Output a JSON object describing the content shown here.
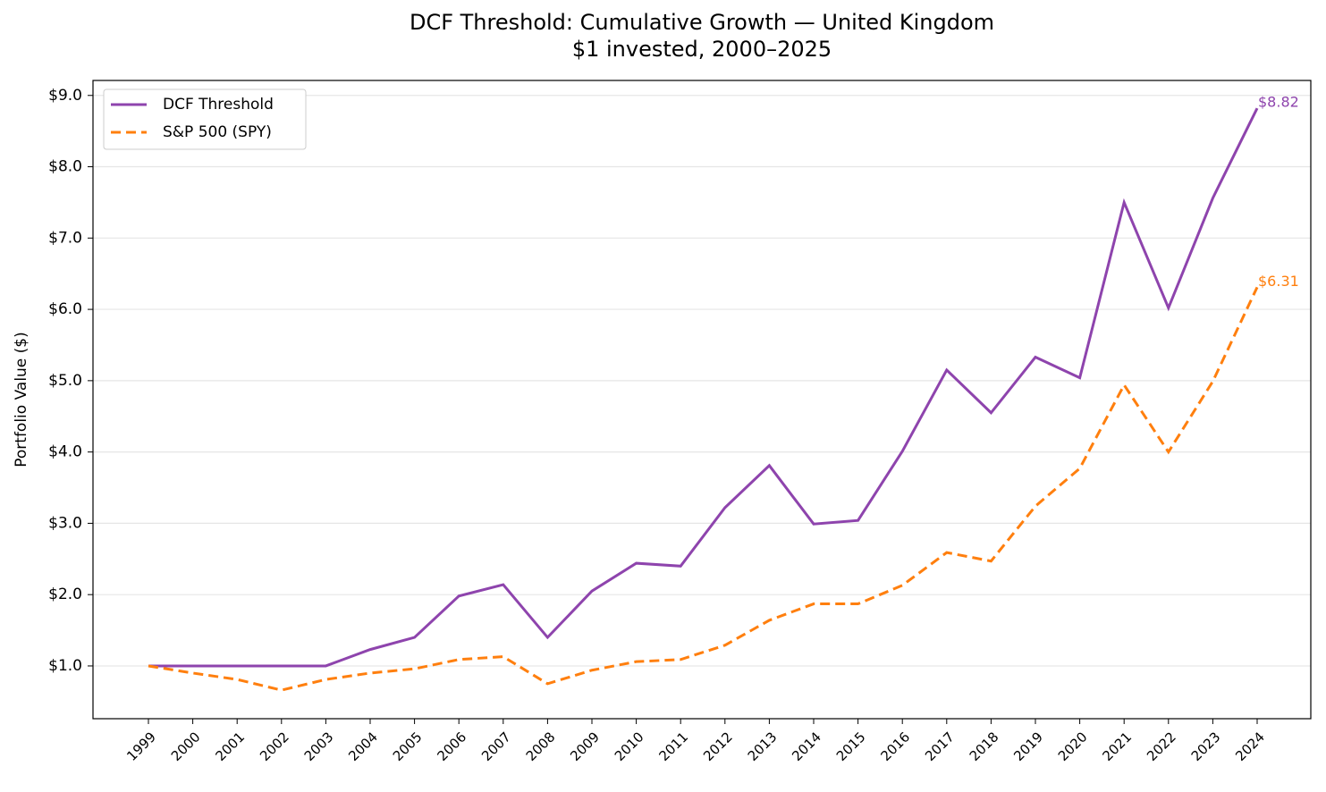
{
  "chart_data": {
    "type": "line",
    "title": "DCF Threshold: Cumulative Growth — United Kingdom",
    "subtitle": "$1 invested, 2000–2025",
    "y_label": "Portfolio Value ($)",
    "categories": [
      "1999",
      "2000",
      "2001",
      "2002",
      "2003",
      "2004",
      "2005",
      "2006",
      "2007",
      "2008",
      "2009",
      "2010",
      "2011",
      "2012",
      "2013",
      "2014",
      "2015",
      "2016",
      "2017",
      "2018",
      "2019",
      "2020",
      "2021",
      "2022",
      "2023",
      "2024"
    ],
    "series": [
      {
        "name": "DCF Threshold",
        "color": "#8e44ad",
        "dashed": false,
        "values": [
          1.0,
          1.0,
          1.0,
          1.0,
          1.0,
          1.23,
          1.4,
          1.98,
          2.14,
          1.4,
          2.05,
          2.44,
          2.4,
          3.22,
          3.81,
          2.99,
          3.04,
          4.01,
          5.15,
          4.55,
          5.33,
          5.04,
          7.5,
          6.02,
          7.56,
          8.82
        ],
        "value_labels": [
          null,
          null,
          null,
          null,
          null,
          null,
          null,
          null,
          null,
          null,
          null,
          null,
          null,
          null,
          null,
          null,
          null,
          null,
          null,
          null,
          null,
          null,
          null,
          null,
          null,
          "$8.82"
        ]
      },
      {
        "name": "S&P 500 (SPY)",
        "color": "#ff7f0e",
        "dashed": true,
        "values": [
          1.0,
          0.9,
          0.81,
          0.66,
          0.81,
          0.9,
          0.96,
          1.09,
          1.13,
          0.75,
          0.94,
          1.06,
          1.09,
          1.29,
          1.64,
          1.87,
          1.87,
          2.13,
          2.59,
          2.47,
          3.24,
          3.77,
          4.94,
          4.0,
          4.99,
          6.31
        ],
        "value_labels": [
          null,
          null,
          null,
          null,
          null,
          null,
          null,
          null,
          null,
          null,
          null,
          null,
          null,
          null,
          null,
          null,
          null,
          null,
          null,
          null,
          null,
          null,
          null,
          null,
          null,
          "$6.31"
        ]
      }
    ],
    "ylim": [
      0.26,
      9.21
    ],
    "yticks": [
      {
        "value": 1,
        "label": "$1.0"
      },
      {
        "value": 2,
        "label": "$2.0"
      },
      {
        "value": 3,
        "label": "$3.0"
      },
      {
        "value": 4,
        "label": "$4.0"
      },
      {
        "value": 5,
        "label": "$5.0"
      },
      {
        "value": 6,
        "label": "$6.0"
      },
      {
        "value": 7,
        "label": "$7.0"
      },
      {
        "value": 8,
        "label": "$8.0"
      },
      {
        "value": 9,
        "label": "$9.0"
      }
    ],
    "grid": true,
    "legend": "upper-left"
  }
}
